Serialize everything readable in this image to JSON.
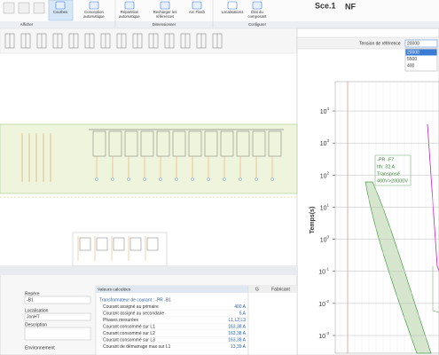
{
  "ribbon": {
    "buttons": [
      {
        "lines": [
          "Courbes"
        ]
      },
      {
        "lines": [
          "Conception",
          "automatique"
        ]
      },
      {
        "lines": [
          "Répartition",
          "automatique"
        ]
      },
      {
        "lines": [
          "Recharger les",
          "références"
        ]
      },
      {
        "lines": [
          "Arc Flash"
        ]
      },
      {
        "lines": [
          "Localisations"
        ]
      },
      {
        "lines": [
          "État du",
          "composant"
        ]
      }
    ],
    "groups": [
      "Afficher",
      "Dimensionner",
      "Configurer"
    ],
    "scenario": "Sce.1",
    "standard": "NF"
  },
  "reference": {
    "label": "Tension de référence",
    "selected": "20000",
    "options": [
      "20000",
      "5500",
      "400"
    ]
  },
  "curve_plot": {
    "ylabel": "Temps(s)",
    "yscale": "log",
    "ylim": [
      0.00028,
      82000
    ],
    "yticks": [
      {
        "value": 10000,
        "label": "10",
        "exp": "4"
      },
      {
        "value": 1000,
        "label": "10",
        "exp": "3"
      },
      {
        "value": 100,
        "label": "10",
        "exp": "2"
      },
      {
        "value": 10,
        "label": "10",
        "exp": "1"
      },
      {
        "value": 1,
        "label": "10",
        "exp": "0"
      },
      {
        "value": 0.1,
        "label": "10",
        "exp": "-1"
      },
      {
        "value": 0.01,
        "label": "10",
        "exp": "-2"
      },
      {
        "value": 0.001,
        "label": "10",
        "exp": "-3"
      }
    ],
    "annotation": [
      "-PR -F7",
      "Ith: 32 A",
      "Transposé",
      "400V>20000V"
    ]
  },
  "properties": [
    {
      "label": "Repère",
      "value": "-B1"
    },
    {
      "label": "Localisation",
      "value": "JonHT"
    },
    {
      "label": "Description"
    },
    {
      "label": "Environnement"
    }
  ],
  "computed": {
    "title": "Valeurs calculées",
    "heading": "Transformateur de courant : -PR -B1",
    "rows": [
      [
        "Courant assigné au primaire",
        "400 A"
      ],
      [
        "Courant assigné au secondaire",
        "5 A"
      ],
      [
        "Phases mesurées",
        "L1,L2,L3"
      ],
      [
        "Courant consommé sur L1",
        "163,38 A"
      ],
      [
        "Courant consommé sur L2",
        "163,38 A"
      ],
      [
        "Courant consommé sur L3",
        "163,38 A"
      ],
      [
        "Courant de démarrage max sur L1",
        "13,39 A"
      ]
    ]
  },
  "grid_header": [
    "G",
    "Fabricant"
  ]
}
